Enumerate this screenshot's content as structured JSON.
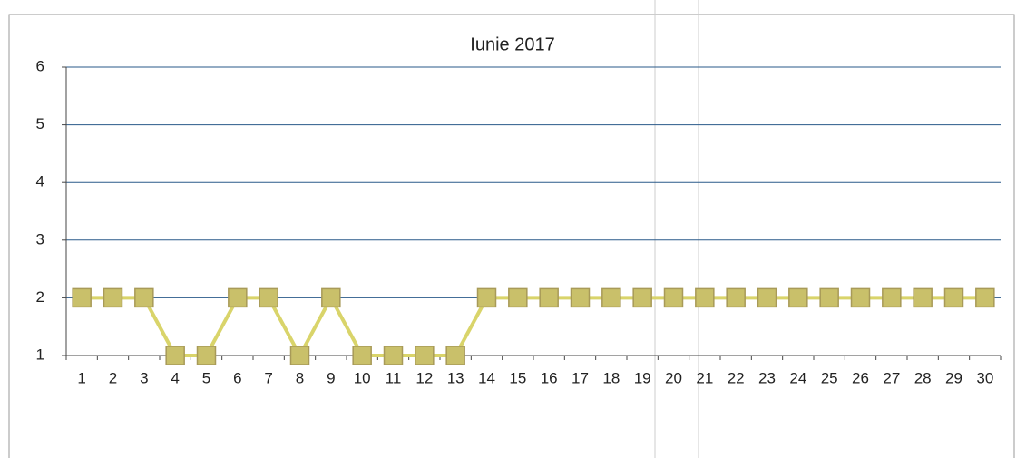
{
  "chart_data": {
    "type": "line",
    "title": "Iunie 2017",
    "categories": [
      "1",
      "2",
      "3",
      "4",
      "5",
      "6",
      "7",
      "8",
      "9",
      "10",
      "11",
      "12",
      "13",
      "14",
      "15",
      "16",
      "17",
      "18",
      "19",
      "20",
      "21",
      "22",
      "23",
      "24",
      "25",
      "26",
      "27",
      "28",
      "29",
      "30"
    ],
    "series": [
      {
        "name": null,
        "color": "#d9d46a",
        "values": [
          2,
          2,
          2,
          1,
          1,
          2,
          2,
          1,
          2,
          1,
          1,
          1,
          1,
          2,
          2,
          2,
          2,
          2,
          2,
          2,
          2,
          2,
          2,
          2,
          2,
          2,
          2,
          2,
          2,
          2
        ]
      }
    ],
    "ylim": [
      1,
      6
    ],
    "yticks": [
      1,
      2,
      3,
      4,
      5,
      6
    ],
    "grid": true
  }
}
